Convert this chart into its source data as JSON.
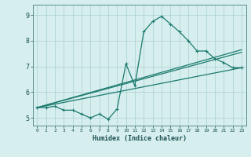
{
  "xlabel": "Humidex (Indice chaleur)",
  "background_color": "#d7eeee",
  "grid_color": "#b0d4d4",
  "line_color": "#1a7a6e",
  "xlim": [
    -0.5,
    23.5
  ],
  "ylim": [
    4.7,
    9.4
  ],
  "xticks": [
    0,
    1,
    2,
    3,
    4,
    5,
    6,
    7,
    8,
    9,
    10,
    11,
    12,
    13,
    14,
    15,
    16,
    17,
    18,
    19,
    20,
    21,
    22,
    23
  ],
  "yticks": [
    5,
    6,
    7,
    8,
    9
  ],
  "main_x": [
    0,
    1,
    2,
    3,
    4,
    5,
    6,
    7,
    8,
    9,
    10,
    11,
    12,
    13,
    14,
    15,
    16,
    17,
    18,
    19,
    20,
    21,
    22,
    23
  ],
  "main_y": [
    5.4,
    5.4,
    5.45,
    5.3,
    5.3,
    5.15,
    5.0,
    5.15,
    4.95,
    5.35,
    7.1,
    6.25,
    8.35,
    8.75,
    8.95,
    8.65,
    8.35,
    8.0,
    7.6,
    7.6,
    7.3,
    7.15,
    6.95,
    6.95
  ],
  "trend1_x": [
    0,
    23
  ],
  "trend1_y": [
    5.4,
    7.55
  ],
  "trend2_x": [
    0,
    23
  ],
  "trend2_y": [
    5.4,
    7.65
  ],
  "trend3_x": [
    0,
    23
  ],
  "trend3_y": [
    5.4,
    6.95
  ]
}
